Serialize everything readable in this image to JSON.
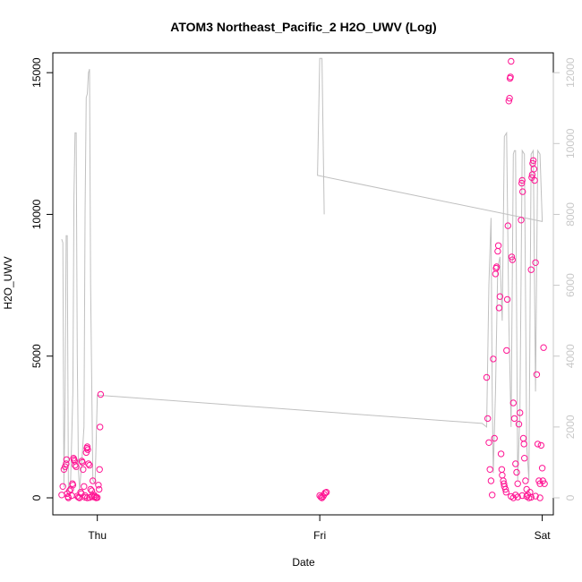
{
  "chart_data": {
    "type": "scatter",
    "title": "ATOM3 Northeast_Pacific_2 H2O_UWV (Log)",
    "xlabel": "Date",
    "ylabel": "H2O_UWV",
    "x_ticks": [
      "Thu",
      "Fri",
      "Sat"
    ],
    "x_tick_positions": [
      1,
      2,
      3
    ],
    "xlim": [
      0.8,
      3.05
    ],
    "ylim": [
      -600,
      15700
    ],
    "y_ticks": [
      0,
      5000,
      10000,
      15000
    ],
    "y2lim": [
      -480,
      12560
    ],
    "y2_ticks": [
      0,
      2000,
      4000,
      6000,
      8000,
      10000,
      12000
    ],
    "grid": false,
    "legend": "none",
    "colors": {
      "points": "#ff1493",
      "line": "#c0c0c0",
      "right_axis": "#c8c8c8"
    },
    "series": [
      {
        "type": "scatter",
        "axis": "left",
        "points": [
          [
            0.84,
            100
          ],
          [
            0.845,
            400
          ],
          [
            0.85,
            1000
          ],
          [
            0.855,
            1100
          ],
          [
            0.86,
            1200
          ],
          [
            0.862,
            1350
          ],
          [
            0.865,
            150
          ],
          [
            0.868,
            40
          ],
          [
            0.87,
            0
          ],
          [
            0.875,
            250
          ],
          [
            0.88,
            300
          ],
          [
            0.885,
            80
          ],
          [
            0.888,
            500
          ],
          [
            0.89,
            450
          ],
          [
            0.893,
            1400
          ],
          [
            0.895,
            1350
          ],
          [
            0.898,
            1300
          ],
          [
            0.9,
            1150
          ],
          [
            0.905,
            1100
          ],
          [
            0.91,
            60
          ],
          [
            0.915,
            20
          ],
          [
            0.92,
            0
          ],
          [
            0.925,
            200
          ],
          [
            0.928,
            150
          ],
          [
            0.93,
            1300
          ],
          [
            0.933,
            1250
          ],
          [
            0.936,
            1000
          ],
          [
            0.94,
            400
          ],
          [
            0.945,
            80
          ],
          [
            0.95,
            1600
          ],
          [
            0.953,
            1750
          ],
          [
            0.955,
            1800
          ],
          [
            0.957,
            1700
          ],
          [
            0.96,
            1200
          ],
          [
            0.965,
            1150
          ],
          [
            0.97,
            300
          ],
          [
            0.975,
            250
          ],
          [
            0.98,
            600
          ],
          [
            0.985,
            100
          ],
          [
            0.99,
            50
          ],
          [
            0.995,
            0
          ],
          [
            1.0,
            10
          ],
          [
            0.995,
            20
          ],
          [
            0.985,
            30
          ],
          [
            0.975,
            50
          ],
          [
            0.965,
            10
          ],
          [
            0.955,
            0
          ],
          [
            0.945,
            20
          ],
          [
            1.005,
            450
          ],
          [
            1.008,
            300
          ],
          [
            1.01,
            1000
          ],
          [
            1.012,
            2500
          ],
          [
            1.015,
            3650
          ],
          [
            2.0,
            80
          ],
          [
            2.005,
            30
          ],
          [
            2.01,
            0
          ],
          [
            2.015,
            50
          ],
          [
            2.02,
            120
          ],
          [
            2.025,
            180
          ],
          [
            2.03,
            200
          ],
          [
            2.75,
            4250
          ],
          [
            2.755,
            2800
          ],
          [
            2.76,
            1950
          ],
          [
            2.765,
            1000
          ],
          [
            2.77,
            600
          ],
          [
            2.775,
            100
          ],
          [
            2.78,
            4900
          ],
          [
            2.785,
            2100
          ],
          [
            2.79,
            7900
          ],
          [
            2.793,
            8100
          ],
          [
            2.795,
            8150
          ],
          [
            2.8,
            8700
          ],
          [
            2.803,
            8900
          ],
          [
            2.806,
            6700
          ],
          [
            2.81,
            7100
          ],
          [
            2.815,
            1550
          ],
          [
            2.818,
            1000
          ],
          [
            2.82,
            800
          ],
          [
            2.825,
            600
          ],
          [
            2.828,
            500
          ],
          [
            2.83,
            400
          ],
          [
            2.835,
            300
          ],
          [
            2.838,
            200
          ],
          [
            2.84,
            5200
          ],
          [
            2.843,
            7000
          ],
          [
            2.846,
            9600
          ],
          [
            2.85,
            14000
          ],
          [
            2.853,
            14100
          ],
          [
            2.855,
            14800
          ],
          [
            2.857,
            14850
          ],
          [
            2.86,
            15400
          ],
          [
            2.863,
            8500
          ],
          [
            2.866,
            8400
          ],
          [
            2.87,
            3350
          ],
          [
            2.875,
            2800
          ],
          [
            2.88,
            1200
          ],
          [
            2.885,
            900
          ],
          [
            2.89,
            500
          ],
          [
            2.895,
            2600
          ],
          [
            2.9,
            3000
          ],
          [
            2.905,
            9800
          ],
          [
            2.908,
            11100
          ],
          [
            2.91,
            11200
          ],
          [
            2.912,
            10800
          ],
          [
            2.915,
            2100
          ],
          [
            2.918,
            1900
          ],
          [
            2.92,
            1400
          ],
          [
            2.925,
            600
          ],
          [
            2.93,
            300
          ],
          [
            2.935,
            100
          ],
          [
            2.94,
            0
          ],
          [
            2.945,
            200
          ],
          [
            2.95,
            8050
          ],
          [
            2.953,
            11300
          ],
          [
            2.955,
            11400
          ],
          [
            2.957,
            11800
          ],
          [
            2.96,
            11900
          ],
          [
            2.963,
            11600
          ],
          [
            2.966,
            11200
          ],
          [
            2.97,
            8300
          ],
          [
            2.975,
            4350
          ],
          [
            2.98,
            1900
          ],
          [
            2.985,
            600
          ],
          [
            2.99,
            500
          ],
          [
            2.995,
            1850
          ],
          [
            3.0,
            1050
          ],
          [
            3.003,
            600
          ],
          [
            3.006,
            5300
          ],
          [
            3.01,
            500
          ],
          [
            2.86,
            50
          ],
          [
            2.87,
            0
          ],
          [
            2.88,
            100
          ],
          [
            2.89,
            30
          ],
          [
            2.91,
            80
          ],
          [
            2.93,
            50
          ],
          [
            2.95,
            20
          ],
          [
            2.97,
            60
          ],
          [
            2.99,
            0
          ]
        ]
      },
      {
        "type": "line",
        "axis": "right",
        "points": [
          [
            0.84,
            7300
          ],
          [
            0.845,
            7200
          ],
          [
            0.85,
            300
          ],
          [
            0.855,
            2800
          ],
          [
            0.86,
            7400
          ],
          [
            0.865,
            7400
          ],
          [
            0.87,
            200
          ],
          [
            0.88,
            500
          ],
          [
            0.89,
            3000
          ],
          [
            0.895,
            8500
          ],
          [
            0.9,
            10300
          ],
          [
            0.905,
            10300
          ],
          [
            0.91,
            4000
          ],
          [
            0.915,
            800
          ],
          [
            0.92,
            200
          ],
          [
            0.93,
            1000
          ],
          [
            0.94,
            2000
          ],
          [
            0.945,
            8000
          ],
          [
            0.95,
            11300
          ],
          [
            0.955,
            11400
          ],
          [
            0.96,
            12000
          ],
          [
            0.965,
            12100
          ],
          [
            0.97,
            6000
          ],
          [
            0.98,
            500
          ],
          [
            0.99,
            400
          ],
          [
            1.0,
            2900
          ],
          [
            2.73,
            2100
          ],
          [
            2.75,
            2000
          ],
          [
            2.76,
            6000
          ],
          [
            2.77,
            7900
          ],
          [
            2.775,
            3000
          ],
          [
            2.78,
            700
          ],
          [
            2.79,
            3000
          ],
          [
            2.8,
            6500
          ],
          [
            2.81,
            6800
          ],
          [
            2.82,
            5000
          ],
          [
            2.83,
            10200
          ],
          [
            2.84,
            10300
          ],
          [
            2.85,
            5000
          ],
          [
            2.86,
            2000
          ],
          [
            2.87,
            9700
          ],
          [
            2.875,
            9800
          ],
          [
            2.88,
            9800
          ],
          [
            2.89,
            500
          ],
          [
            2.9,
            2500
          ],
          [
            2.91,
            9800
          ],
          [
            2.92,
            9700
          ],
          [
            2.93,
            1500
          ],
          [
            2.94,
            500
          ],
          [
            2.95,
            9700
          ],
          [
            2.96,
            9800
          ],
          [
            2.97,
            3000
          ],
          [
            2.98,
            9800
          ],
          [
            2.99,
            9700
          ],
          [
            3.0,
            7800
          ],
          [
            1.99,
            9100
          ],
          [
            2.0,
            12400
          ],
          [
            2.01,
            12400
          ],
          [
            2.02,
            8000
          ]
        ]
      }
    ]
  }
}
